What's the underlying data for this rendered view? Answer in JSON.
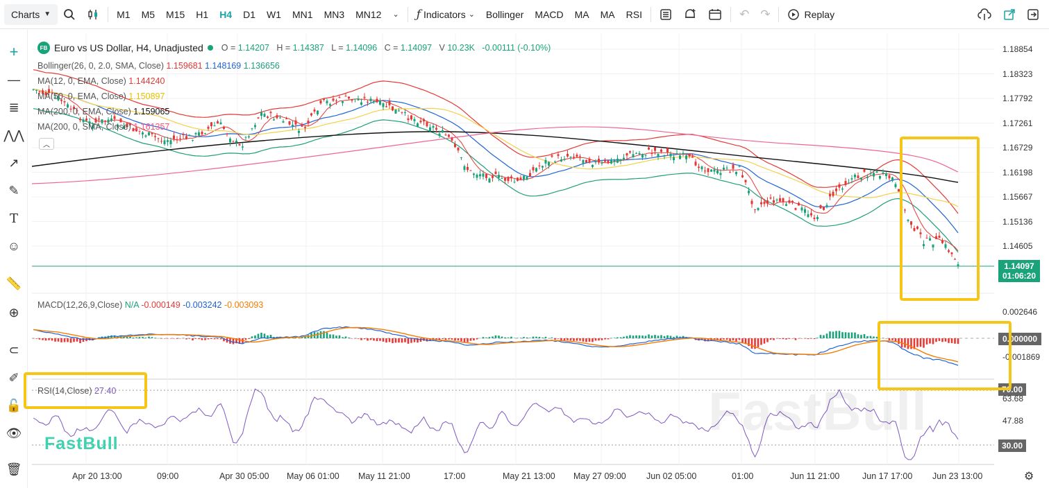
{
  "toolbar": {
    "charts_label": "Charts",
    "timeframes": [
      "M1",
      "M5",
      "M15",
      "H1",
      "H4",
      "D1",
      "W1",
      "MN1",
      "MN3",
      "MN12"
    ],
    "selected_timeframe": "H4",
    "indicators_label": "Indicators",
    "indicator_shortcuts": [
      "Bollinger",
      "MACD",
      "MA",
      "MA",
      "RSI"
    ],
    "replay_label": "Replay"
  },
  "symbol": {
    "badge": "FB",
    "title": "Euro vs US Dollar, H4, Unadjusted",
    "o_label": "O =",
    "o": "1.14207",
    "h_label": "H =",
    "h": "1.14387",
    "l_label": "L =",
    "l": "1.14096",
    "c_label": "C =",
    "c": "1.14097",
    "v_label": "V",
    "v": "10.23K",
    "change": "-0.00111 (-0.10%)"
  },
  "indicators": [
    {
      "label": "Bollinger(26, 0, 2.0, SMA, Close)",
      "values": [
        "1.159681",
        "1.148169",
        "1.136656"
      ],
      "colors": [
        "#e53935",
        "#1e63d6",
        "#1e9e7a"
      ]
    },
    {
      "label": "MA(12, 0, EMA, Close)",
      "values": [
        "1.144240"
      ],
      "colors": [
        "#e53935"
      ]
    },
    {
      "label": "MA(50, 0, EMA, Close)",
      "values": [
        "1.150897"
      ],
      "colors": [
        "#e8c000"
      ]
    },
    {
      "label": "MA(200, 0, EMA, Close)",
      "values": [
        "1.159065"
      ],
      "colors": [
        "#111111"
      ]
    },
    {
      "label": "MA(200, 0, SMA, Close)",
      "values": [
        "1.161357"
      ],
      "colors": [
        "#ff4f7a"
      ]
    }
  ],
  "price_axis": [
    "1.18854",
    "1.18323",
    "1.17792",
    "1.17261",
    "1.16729",
    "1.16198",
    "1.15667",
    "1.15136",
    "1.14605"
  ],
  "current_price": {
    "price": "1.14097",
    "countdown": "01:06:20",
    "color": "#1aa37a"
  },
  "macd": {
    "label": "MACD(12,26,9,Close)",
    "na": "N/A",
    "v1": "-0.000149",
    "v2": "-0.003242",
    "v3": "-0.003093",
    "axis": [
      "0.002646",
      "0.000000",
      "-0.001869"
    ]
  },
  "rsi": {
    "label": "RSI(14,Close)",
    "value": "27.40",
    "axis": [
      "70.00",
      "63.68",
      "47.88",
      "30.00"
    ]
  },
  "time_axis": [
    "Apr 20 13:00",
    "09:00",
    "Apr 30 05:00",
    "May 06 01:00",
    "May 11 21:00",
    "17:00",
    "May 21 13:00",
    "May 27 09:00",
    "Jun 02 05:00",
    "01:00",
    "Jun 11 21:00",
    "Jun 17 17:00",
    "Jun 23 13:00"
  ],
  "watermark": "FastBull",
  "colors": {
    "up": "#1aa37a",
    "down": "#e53935",
    "accent": "#f5c518",
    "rsi": "#7e57c2"
  }
}
